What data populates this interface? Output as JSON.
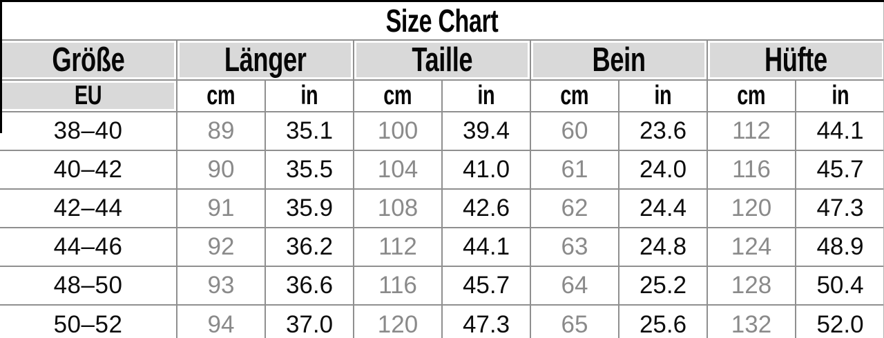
{
  "title": "Size Chart",
  "colors": {
    "header_bg": "#d9d9d9",
    "grid_line": "#8f8f8f",
    "muted_text": "#8a8a8a",
    "ink": "#0c0c0c",
    "outer_border": "#000000"
  },
  "chart_data": {
    "type": "table",
    "title": "Size Chart",
    "column_groups": [
      {
        "label": "Größe",
        "units": [
          "EU"
        ]
      },
      {
        "label": "Länger",
        "units": [
          "cm",
          "in"
        ]
      },
      {
        "label": "Taille",
        "units": [
          "cm",
          "in"
        ]
      },
      {
        "label": "Bein",
        "units": [
          "cm",
          "in"
        ]
      },
      {
        "label": "Hüfte",
        "units": [
          "cm",
          "in"
        ]
      }
    ],
    "rows": [
      [
        "38–40",
        "89",
        "35.1",
        "100",
        "39.4",
        "60",
        "23.6",
        "112",
        "44.1"
      ],
      [
        "40–42",
        "90",
        "35.5",
        "104",
        "41.0",
        "61",
        "24.0",
        "116",
        "45.7"
      ],
      [
        "42–44",
        "91",
        "35.9",
        "108",
        "42.6",
        "62",
        "24.4",
        "120",
        "47.3"
      ],
      [
        "44–46",
        "92",
        "36.2",
        "112",
        "44.1",
        "63",
        "24.8",
        "124",
        "48.9"
      ],
      [
        "48–50",
        "93",
        "36.6",
        "116",
        "45.7",
        "64",
        "25.2",
        "128",
        "50.4"
      ],
      [
        "50–52",
        "94",
        "37.0",
        "120",
        "47.3",
        "65",
        "25.6",
        "132",
        "52.0"
      ]
    ]
  }
}
